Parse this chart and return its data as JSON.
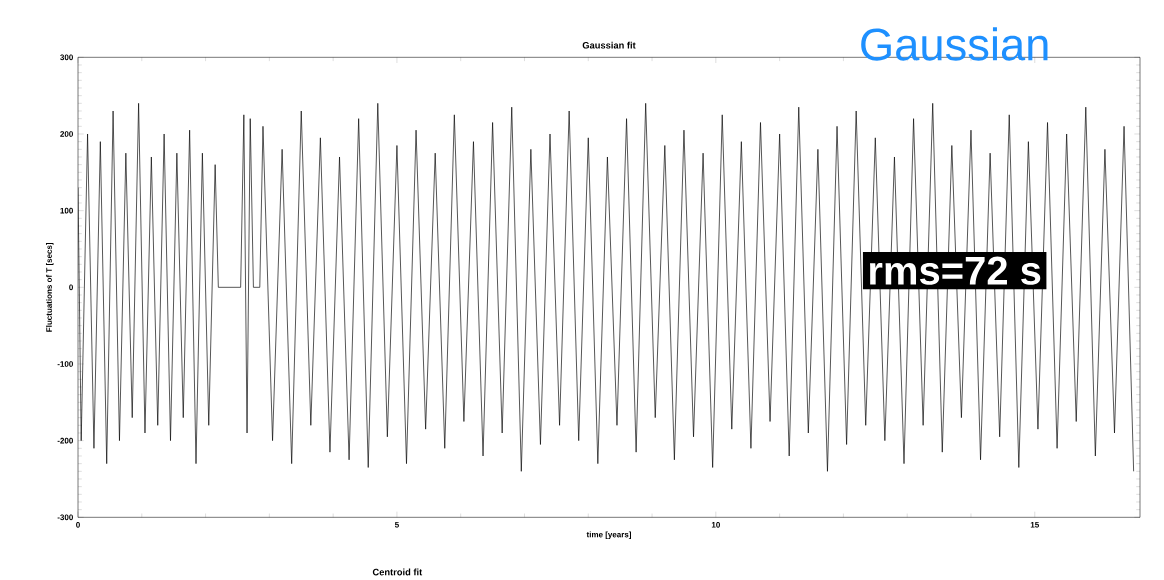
{
  "chart_data": {
    "type": "line",
    "title": "Gaussian fit",
    "xlabel": "time [years]",
    "ylabel": "Fluctuations of T [secs]",
    "annotations": [
      "Gaussian",
      "rms=72 s",
      "Centroid fit"
    ],
    "xlim": [
      0,
      16.65
    ],
    "ylim": [
      -300,
      300
    ],
    "xticks": [
      0,
      5,
      10,
      15
    ],
    "yticks": [
      -300,
      -200,
      -100,
      0,
      100,
      200,
      300
    ],
    "grid": false,
    "marker": "none",
    "line_style": "solid",
    "series": [
      {
        "color": "#000000",
        "x": [
          0.0,
          0.05,
          0.15,
          0.25,
          0.35,
          0.45,
          0.55,
          0.65,
          0.75,
          0.85,
          0.95,
          1.05,
          1.15,
          1.25,
          1.35,
          1.45,
          1.55,
          1.65,
          1.75,
          1.85,
          1.95,
          2.05,
          2.15,
          2.2,
          2.55,
          2.6,
          2.65,
          2.7,
          2.75,
          2.85,
          2.9,
          3.05,
          3.2,
          3.35,
          3.5,
          3.65,
          3.8,
          3.95,
          4.1,
          4.25,
          4.4,
          4.55,
          4.7,
          4.85,
          5.0,
          5.15,
          5.3,
          5.45,
          5.6,
          5.75,
          5.9,
          6.05,
          6.2,
          6.35,
          6.5,
          6.65,
          6.8,
          6.95,
          7.1,
          7.25,
          7.4,
          7.55,
          7.7,
          7.85,
          8.0,
          8.15,
          8.3,
          8.45,
          8.6,
          8.75,
          8.9,
          9.05,
          9.2,
          9.35,
          9.5,
          9.65,
          9.8,
          9.95,
          10.1,
          10.25,
          10.4,
          10.55,
          10.7,
          10.85,
          11.0,
          11.15,
          11.3,
          11.45,
          11.6,
          11.75,
          11.9,
          12.05,
          12.2,
          12.35,
          12.5,
          12.65,
          12.8,
          12.95,
          13.1,
          13.25,
          13.4,
          13.55,
          13.7,
          13.85,
          14.0,
          14.15,
          14.3,
          14.45,
          14.6,
          14.75,
          14.9,
          15.05,
          15.2,
          15.35,
          15.5,
          15.65,
          15.8,
          15.95,
          16.1,
          16.25,
          16.4,
          16.55
        ],
        "values": [
          130,
          -200,
          200,
          -210,
          190,
          -230,
          230,
          -200,
          175,
          -170,
          240,
          -190,
          170,
          -180,
          200,
          -200,
          175,
          -170,
          205,
          -230,
          175,
          -180,
          160,
          0,
          0,
          225,
          -190,
          220,
          0,
          0,
          210,
          -200,
          180,
          -230,
          230,
          -180,
          195,
          -215,
          170,
          -225,
          220,
          -235,
          240,
          -195,
          185,
          -230,
          205,
          -185,
          175,
          -210,
          225,
          -175,
          190,
          -220,
          215,
          -190,
          235,
          -240,
          180,
          -205,
          200,
          -180,
          230,
          -200,
          195,
          -230,
          170,
          -180,
          220,
          -215,
          240,
          -170,
          185,
          -225,
          205,
          -195,
          175,
          -235,
          225,
          -185,
          190,
          -210,
          215,
          -175,
          200,
          -220,
          235,
          -190,
          180,
          -240,
          210,
          -205,
          230,
          -180,
          195,
          -200,
          170,
          -230,
          220,
          -180,
          240,
          -215,
          185,
          -170,
          205,
          -225,
          175,
          -195,
          225,
          -235,
          190,
          -185,
          215,
          -210,
          200,
          -175,
          235,
          -220,
          180,
          -190,
          210,
          -240
        ]
      }
    ]
  }
}
